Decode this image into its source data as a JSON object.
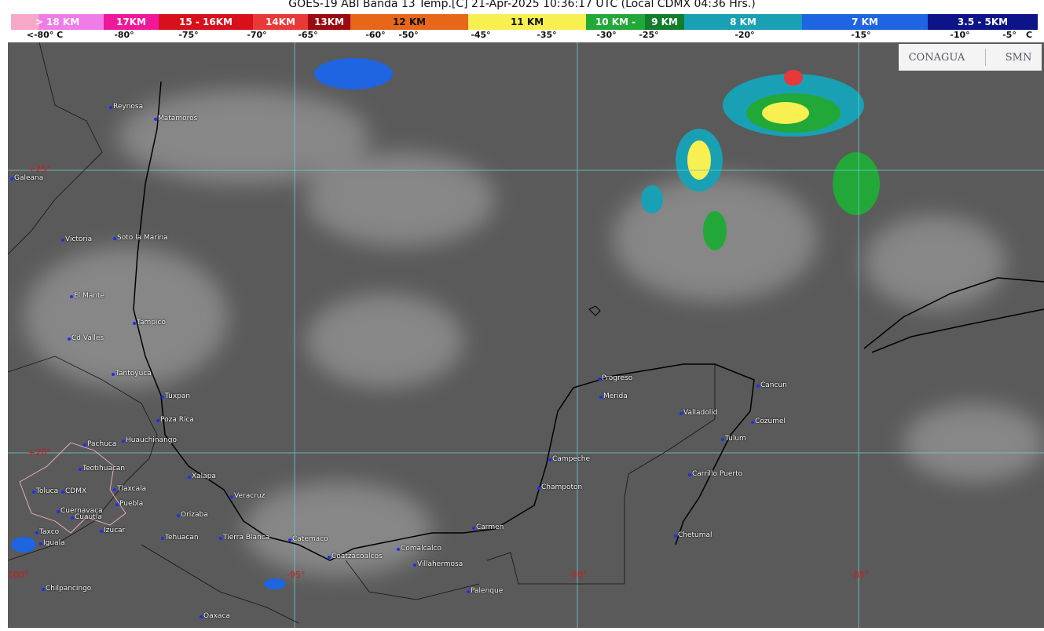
{
  "title": "GOES-19 ABI Banda 13 Temp.[C] 21-Apr-2025 10:36:17 UTC (Local CDMX  04:36 Hrs.)",
  "legend": {
    "segments": [
      {
        "label": "> 18 KM",
        "color": "#f07ce8"
      },
      {
        "label": "17KM",
        "color": "#f0189a"
      },
      {
        "label": "15 - 16KM",
        "color": "#d8101c"
      },
      {
        "label": "14KM",
        "color": "#e83838"
      },
      {
        "label": "13KM",
        "color": "#9a0a10"
      },
      {
        "label": "12 KM",
        "color": "#e8661a"
      },
      {
        "label": "11 KM",
        "color": "#f8f050"
      },
      {
        "label": "10 KM - ",
        "color": "#22a838"
      },
      {
        "label": "9 KM",
        "color": "#137d2c"
      },
      {
        "label": "8 KM",
        "color": "#1aa0b4"
      },
      {
        "label": "7 KM",
        "color": "#1f64e0"
      },
      {
        "label": "3.5 - 5KM",
        "color": "#0c1488"
      }
    ],
    "ticks": [
      "<-80° C",
      "-80°",
      "-75°",
      "-70°",
      "-65°",
      "-60°",
      "-50°",
      "-45°",
      "-35°",
      "-30°",
      "-25°",
      "-20°",
      "-15°",
      "-10°",
      "-5°",
      "C"
    ]
  },
  "grid": {
    "lat": [
      "+25°",
      "+20°"
    ],
    "lon": [
      "-100°",
      "-95°",
      "-90°",
      "-85°"
    ]
  },
  "logos": {
    "conagua": "CONAGUA",
    "smn": "SMN"
  },
  "cities": [
    "Reynosa",
    "Matamoros",
    "Galeana",
    "Victoria",
    "Soto la Marina",
    "El Mante",
    "Tampico",
    "Cd Valles",
    "Tantoyuca",
    "Tuxpan",
    "Poza Rica",
    "Pachuca",
    "Huauchinango",
    "Teotihuacan",
    "Xalapa",
    "Toluca",
    "CDMX",
    "Tlaxcala",
    "Puebla",
    "Veracruz",
    "Cuernavaca",
    "Cuautla",
    "Orizaba",
    "Izucar",
    "Tehuacan",
    "Tierra Blanca",
    "Catemaco",
    "Taxco",
    "Iguala",
    "Coatzacoalcos",
    "Comalcalco",
    "Villahermosa",
    "Chilpancingo",
    "Oaxaca",
    "Palenque",
    "Carmen",
    "Champoton",
    "Campeche",
    "Progreso",
    "Merida",
    "Valladolid",
    "Cancun",
    "Cozumel",
    "Tulum",
    "Carrillo Puerto",
    "Chetumal"
  ]
}
